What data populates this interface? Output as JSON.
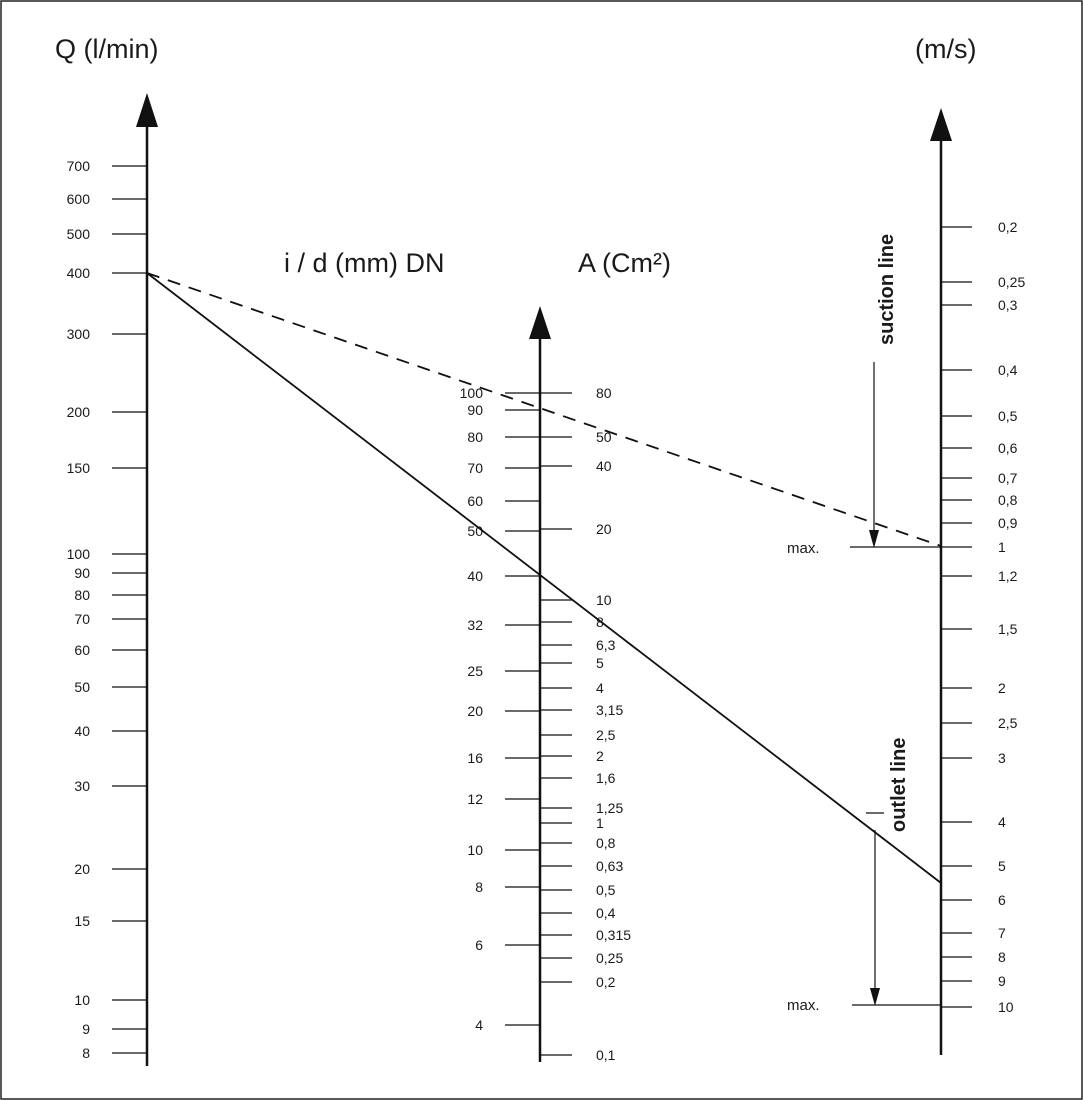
{
  "titles": {
    "q": "Q (l/min)",
    "v": "(m/s)",
    "d": "i / d (mm) DN",
    "a": "A (Cm²)"
  },
  "side_labels": {
    "suction": "suction line",
    "outlet": "outlet line"
  },
  "max_labels": {
    "suction": "max.",
    "outlet": "max."
  },
  "axes": {
    "q": {
      "name": "Q (l/min)",
      "ticks": [
        "700",
        "600",
        "500",
        "400",
        "300",
        "200",
        "150",
        "100",
        "90",
        "80",
        "70",
        "60",
        "50",
        "40",
        "30",
        "20",
        "15",
        "10",
        "9",
        "8"
      ]
    },
    "d": {
      "name": "i / d (mm) DN",
      "ticks": [
        "100",
        "90",
        "80",
        "70",
        "60",
        "50",
        "40",
        "32",
        "25",
        "20",
        "16",
        "12",
        "10",
        "8",
        "6",
        "4"
      ]
    },
    "a": {
      "name": "A (Cm²)",
      "ticks": [
        "80",
        "50",
        "40",
        "20",
        "10",
        "8",
        "6,3",
        "5",
        "4",
        "3,15",
        "2,5",
        "2",
        "1,6",
        "1,25",
        "1",
        "0,8",
        "0,63",
        "0,5",
        "0,4",
        "0,315",
        "0,25",
        "0,2",
        "0,1"
      ]
    },
    "v": {
      "name": "(m/s)",
      "ticks": [
        "0,2",
        "0,25",
        "0,3",
        "0,4",
        "0,5",
        "0,6",
        "0,7",
        "0,8",
        "0,9",
        "1",
        "1,2",
        "1,5",
        "2",
        "2,5",
        "3",
        "4",
        "5",
        "6",
        "7",
        "8",
        "9",
        "10"
      ]
    }
  },
  "examples": {
    "suction_dashed": {
      "q": "400",
      "d": "90",
      "v": "1"
    },
    "outlet_solid": {
      "q": "400",
      "d": "40",
      "v": "5.5"
    }
  }
}
